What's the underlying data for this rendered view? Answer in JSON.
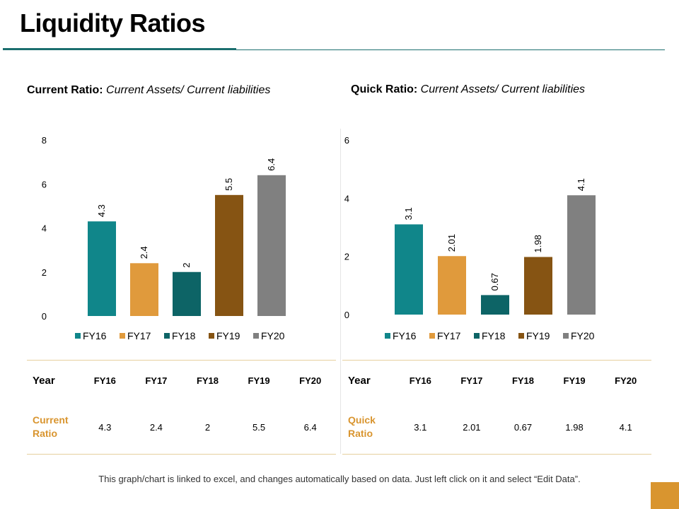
{
  "page": {
    "title": "Liquidity Ratios",
    "footnote": "This graph/chart is linked to excel, and changes automatically based on data.  Just left click on it and select “Edit Data”."
  },
  "colors": {
    "FY16": "#10868a",
    "FY17": "#e09a3c",
    "FY18": "#0d6466",
    "FY19": "#865413",
    "FY20": "#808080",
    "accent_line": "#1b6e6e",
    "table_rule": "#e6cf9e",
    "row_label": "#d9952f"
  },
  "chart_data": [
    {
      "type": "bar",
      "title_bold": "Current Ratio:",
      "title_italic": " Current Assets/ Current liabilities",
      "categories": [
        "FY16",
        "FY17",
        "FY18",
        "FY19",
        "FY20"
      ],
      "values": [
        4.3,
        2.4,
        2,
        5.5,
        6.4
      ],
      "value_labels": [
        "4.3",
        "2.4",
        "2",
        "5.5",
        "6.4"
      ],
      "yticks": [
        "0",
        "2",
        "4",
        "6",
        "8"
      ],
      "ylim": [
        0,
        8
      ],
      "legend": [
        "FY16",
        "FY17",
        "FY18",
        "FY19",
        "FY20"
      ],
      "legend_position": "bottom",
      "grid": false
    },
    {
      "type": "bar",
      "title_bold": "Quick Ratio:",
      "title_italic": " Current Assets/ Current liabilities",
      "categories": [
        "FY16",
        "FY17",
        "FY18",
        "FY19",
        "FY20"
      ],
      "values": [
        3.1,
        2.01,
        0.67,
        1.98,
        4.1
      ],
      "value_labels": [
        "3.1",
        "2.01",
        "0.67",
        "1.98",
        "4.1"
      ],
      "yticks": [
        "0",
        "2",
        "4",
        "6"
      ],
      "ylim": [
        0,
        6
      ],
      "legend": [
        "FY16",
        "FY17",
        "FY18",
        "FY19",
        "FY20"
      ],
      "legend_position": "bottom",
      "grid": false
    }
  ],
  "tables": [
    {
      "header_label": "Year",
      "columns": [
        "FY16",
        "FY17",
        "FY18",
        "FY19",
        "FY20"
      ],
      "row_label_line1": "Current",
      "row_label_line2": "Ratio",
      "values": [
        "4.3",
        "2.4",
        "2",
        "5.5",
        "6.4"
      ]
    },
    {
      "header_label": "Year",
      "columns": [
        "FY16",
        "FY17",
        "FY18",
        "FY19",
        "FY20"
      ],
      "row_label_line1": "Quick",
      "row_label_line2": "Ratio",
      "values": [
        "3.1",
        "2.01",
        "0.67",
        "1.98",
        "4.1"
      ]
    }
  ]
}
